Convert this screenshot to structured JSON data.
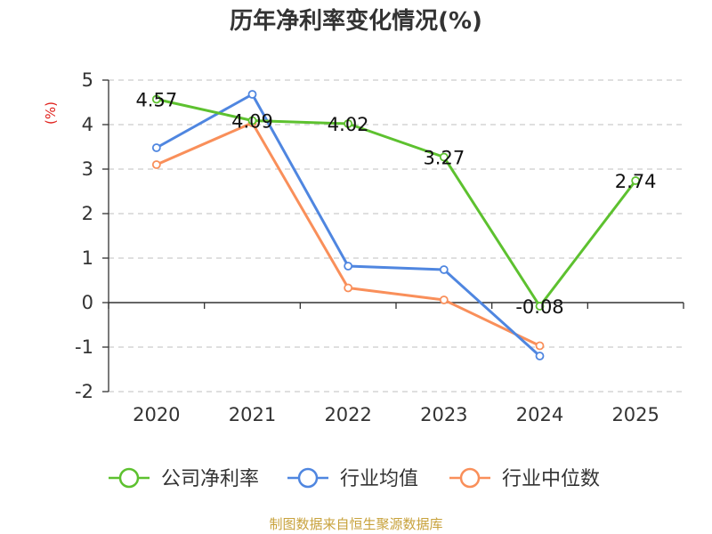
{
  "chart_data": {
    "type": "line",
    "title": "历年净利率变化情况(%)",
    "ylabel": "(%)",
    "xlabel": "",
    "categories": [
      "2020",
      "2021",
      "2022",
      "2023",
      "2024",
      "2025"
    ],
    "ylim": [
      -2,
      5
    ],
    "yticks": [
      "5",
      "4",
      "3",
      "2",
      "1",
      "0",
      "-1",
      "-2"
    ],
    "grid": true,
    "legend_position": "bottom",
    "series": [
      {
        "name": "公司净利率",
        "color": "#5dc12f",
        "values": [
          4.57,
          4.09,
          4.02,
          3.27,
          -0.08,
          2.74
        ],
        "labels": [
          "4.57",
          "4.09",
          "4.02",
          "3.27",
          "-0.08",
          "2.74"
        ]
      },
      {
        "name": "行业均值",
        "color": "#4f86e0",
        "values": [
          3.48,
          4.68,
          0.82,
          0.74,
          -1.2,
          null
        ]
      },
      {
        "name": "行业中位数",
        "color": "#f98f5a",
        "values": [
          3.1,
          4.04,
          0.33,
          0.06,
          -0.97,
          null
        ]
      }
    ]
  },
  "source": {
    "text": "制图数据来自恒生聚源数据库",
    "color": "#c8a23c"
  },
  "colors": {
    "unit": "#e0201b",
    "axis": "#333333",
    "grid": "#cccccc"
  }
}
